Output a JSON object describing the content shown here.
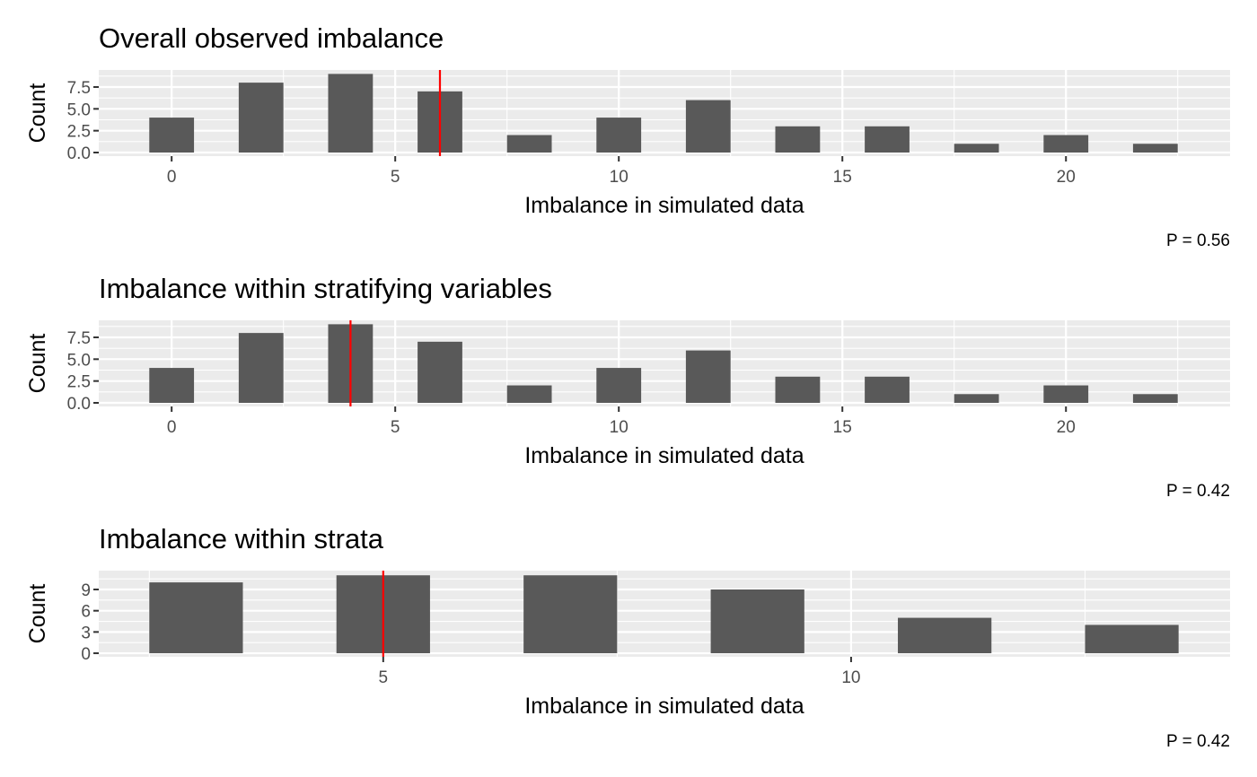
{
  "chart_data": [
    {
      "type": "bar",
      "title": "Overall observed imbalance",
      "xlabel": "Imbalance in simulated data",
      "ylabel": "Count",
      "x": [
        0,
        2,
        4,
        6,
        8,
        10,
        12,
        14,
        16,
        18,
        20,
        22
      ],
      "values": [
        4,
        8,
        9,
        7,
        2,
        4,
        6,
        3,
        3,
        1,
        2,
        1
      ],
      "bar_width": 1,
      "xlim": [
        -1.63,
        23.67
      ],
      "ylim": [
        -0.41,
        9.45
      ],
      "xticks": [
        0,
        5,
        10,
        15,
        20
      ],
      "xtick_labels": [
        "0",
        "5",
        "10",
        "15",
        "20"
      ],
      "yticks": [
        0,
        2.5,
        5,
        7.5
      ],
      "ytick_labels": [
        "0.0",
        "2.5",
        "5.0",
        "7.5"
      ],
      "observed_line": 6,
      "annotation": "P = 0.56",
      "grid": true
    },
    {
      "type": "bar",
      "title": "Imbalance within stratifying variables",
      "xlabel": "Imbalance in simulated data",
      "ylabel": "Count",
      "x": [
        0,
        2,
        4,
        6,
        8,
        10,
        12,
        14,
        16,
        18,
        20,
        22
      ],
      "values": [
        4,
        8,
        9,
        7,
        2,
        4,
        6,
        3,
        3,
        1,
        2,
        1
      ],
      "bar_width": 1,
      "xlim": [
        -1.63,
        23.67
      ],
      "ylim": [
        -0.41,
        9.45
      ],
      "xticks": [
        0,
        5,
        10,
        15,
        20
      ],
      "xtick_labels": [
        "0",
        "5",
        "10",
        "15",
        "20"
      ],
      "yticks": [
        0,
        2.5,
        5,
        7.5
      ],
      "ytick_labels": [
        "0.0",
        "2.5",
        "5.0",
        "7.5"
      ],
      "observed_line": 4,
      "annotation": "P = 0.42",
      "grid": true
    },
    {
      "type": "bar",
      "title": "Imbalance within strata",
      "xlabel": "Imbalance in simulated data",
      "ylabel": "Count",
      "x": [
        3,
        5,
        7,
        9,
        11,
        13
      ],
      "values": [
        10,
        11,
        11,
        9,
        5,
        4
      ],
      "bar_width": 1,
      "xlim": [
        1.96,
        14.05
      ],
      "ylim": [
        -0.5,
        11.66
      ],
      "xticks": [
        5,
        10
      ],
      "xtick_labels": [
        "5",
        "10"
      ],
      "yticks": [
        0,
        3,
        6,
        9
      ],
      "ytick_labels": [
        "0",
        "3",
        "6",
        "9"
      ],
      "observed_line": 5,
      "annotation": "P = 0.42",
      "grid": true
    }
  ],
  "colors": {
    "panel_bg": "#ebebeb",
    "grid": "#ffffff",
    "bar": "#595959",
    "observed_line": "#ff0000",
    "tick_text": "#4d4d4d",
    "tick_mark": "#333333"
  }
}
